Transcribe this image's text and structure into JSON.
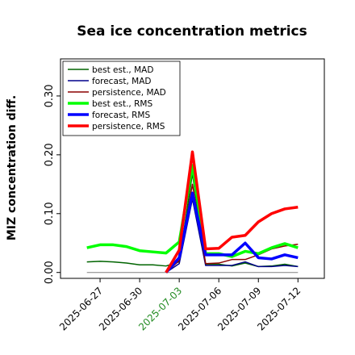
{
  "chart_data": {
    "type": "line",
    "title": "Sea ice concentration metrics",
    "y_label": "MIZ concentration diff.",
    "x": [
      "2025-06-26",
      "2025-06-27",
      "2025-06-28",
      "2025-06-29",
      "2025-06-30",
      "2025-07-01",
      "2025-07-02",
      "2025-07-03",
      "2025-07-04",
      "2025-07-05",
      "2025-07-06",
      "2025-07-07",
      "2025-07-08",
      "2025-07-09",
      "2025-07-10",
      "2025-07-11",
      "2025-07-12"
    ],
    "xlim": [
      "2025-06-24",
      "2025-07-14"
    ],
    "xticks": [
      "2025-06-27",
      "2025-06-30",
      "2025-07-03",
      "2025-07-06",
      "2025-07-09",
      "2025-07-12"
    ],
    "xtick_label_colors": [
      "#000000",
      "#000000",
      "#228b22",
      "#000000",
      "#000000",
      "#000000"
    ],
    "ylim": [
      -0.01,
      0.363
    ],
    "yticks": [
      {
        "value": 0,
        "label": "0.00"
      },
      {
        "value": 0.1,
        "label": "0.10"
      },
      {
        "value": 0.2,
        "label": "0.20"
      },
      {
        "value": 0.3,
        "label": "0.30"
      }
    ],
    "zero_line": true,
    "legend": "upper left",
    "series": [
      {
        "name": "best est., MAD",
        "color": "#006400",
        "width": 1.5,
        "values": [
          0.018,
          0.019,
          0.018,
          0.016,
          0.013,
          0.013,
          0.011,
          0.018,
          0.168,
          0.014,
          0.014,
          0.011,
          0.016,
          0.01,
          0.011,
          0.014,
          0.01
        ]
      },
      {
        "name": "forecast,  MAD",
        "color": "#00008b",
        "width": 1.5,
        "values": [
          null,
          null,
          null,
          null,
          null,
          null,
          0.0,
          0.015,
          0.125,
          0.012,
          0.012,
          0.012,
          0.018,
          0.01,
          0.01,
          0.012,
          0.01
        ]
      },
      {
        "name": "persistence, MAD",
        "color": "#8b0000",
        "width": 1.5,
        "values": [
          null,
          null,
          null,
          null,
          null,
          null,
          0.0,
          0.02,
          0.15,
          0.015,
          0.016,
          0.022,
          0.022,
          0.03,
          0.04,
          0.045,
          0.048
        ]
      },
      {
        "name": "best est., RMS",
        "color": "#00ff00",
        "width": 3.5,
        "values": [
          0.042,
          0.047,
          0.047,
          0.044,
          0.037,
          0.035,
          0.033,
          0.052,
          0.182,
          0.032,
          0.032,
          0.027,
          0.036,
          0.032,
          0.042,
          0.049,
          0.042
        ]
      },
      {
        "name": "forecast,  RMS",
        "color": "#0000ff",
        "width": 3.5,
        "values": [
          null,
          null,
          null,
          null,
          null,
          null,
          0.0,
          0.025,
          0.135,
          0.03,
          0.03,
          0.03,
          0.05,
          0.025,
          0.023,
          0.03,
          0.025
        ]
      },
      {
        "name": "persistence, RMS",
        "color": "#ff0000",
        "width": 3.5,
        "values": [
          null,
          null,
          null,
          null,
          null,
          null,
          0.0,
          0.038,
          0.205,
          0.04,
          0.041,
          0.06,
          0.063,
          0.086,
          0.1,
          0.108,
          0.111
        ]
      }
    ]
  }
}
